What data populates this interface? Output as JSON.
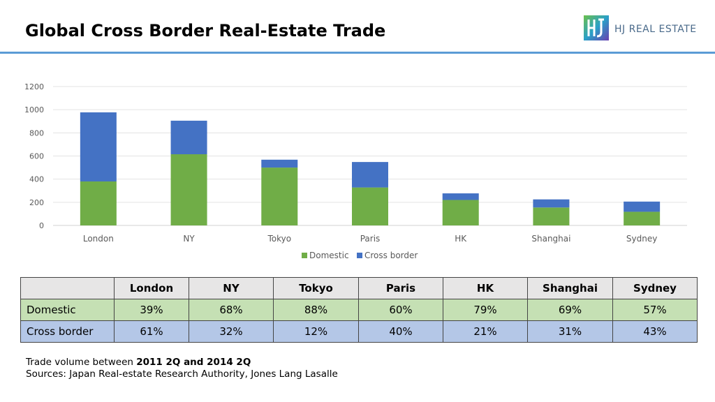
{
  "title": "Global Cross Border Real-Estate Trade",
  "logo": {
    "text": "HJ REAL ESTATE",
    "icon": "hj-logo-icon"
  },
  "chart_data": {
    "type": "bar",
    "stacked": true,
    "categories": [
      "London",
      "NY",
      "Tokyo",
      "Paris",
      "HK",
      "Shanghai",
      "Sydney"
    ],
    "series": [
      {
        "name": "Domestic",
        "color": "#70ad47",
        "values": [
          380,
          615,
          500,
          328,
          220,
          155,
          118
        ]
      },
      {
        "name": "Cross border",
        "color": "#4472c4",
        "values": [
          597,
          290,
          68,
          220,
          57,
          70,
          88
        ]
      }
    ],
    "yticks": [
      0,
      200,
      400,
      600,
      800,
      1000,
      1200
    ],
    "ylim": [
      0,
      1200
    ],
    "grid": true,
    "legend": "bottom"
  },
  "table": {
    "columns": [
      "London",
      "NY",
      "Tokyo",
      "Paris",
      "HK",
      "Shanghai",
      "Sydney"
    ],
    "rows": [
      {
        "label": "Domestic",
        "values": [
          "39%",
          "68%",
          "88%",
          "60%",
          "79%",
          "69%",
          "57%"
        ]
      },
      {
        "label": "Cross border",
        "values": [
          "61%",
          "32%",
          "12%",
          "40%",
          "21%",
          "31%",
          "43%"
        ]
      }
    ]
  },
  "notes": {
    "line1_prefix": "Trade volume between ",
    "line1_bold": "2011 2Q and 2014 2Q",
    "line2": "Sources: Japan Real-estate Research Authority, Jones Lang Lasalle"
  }
}
